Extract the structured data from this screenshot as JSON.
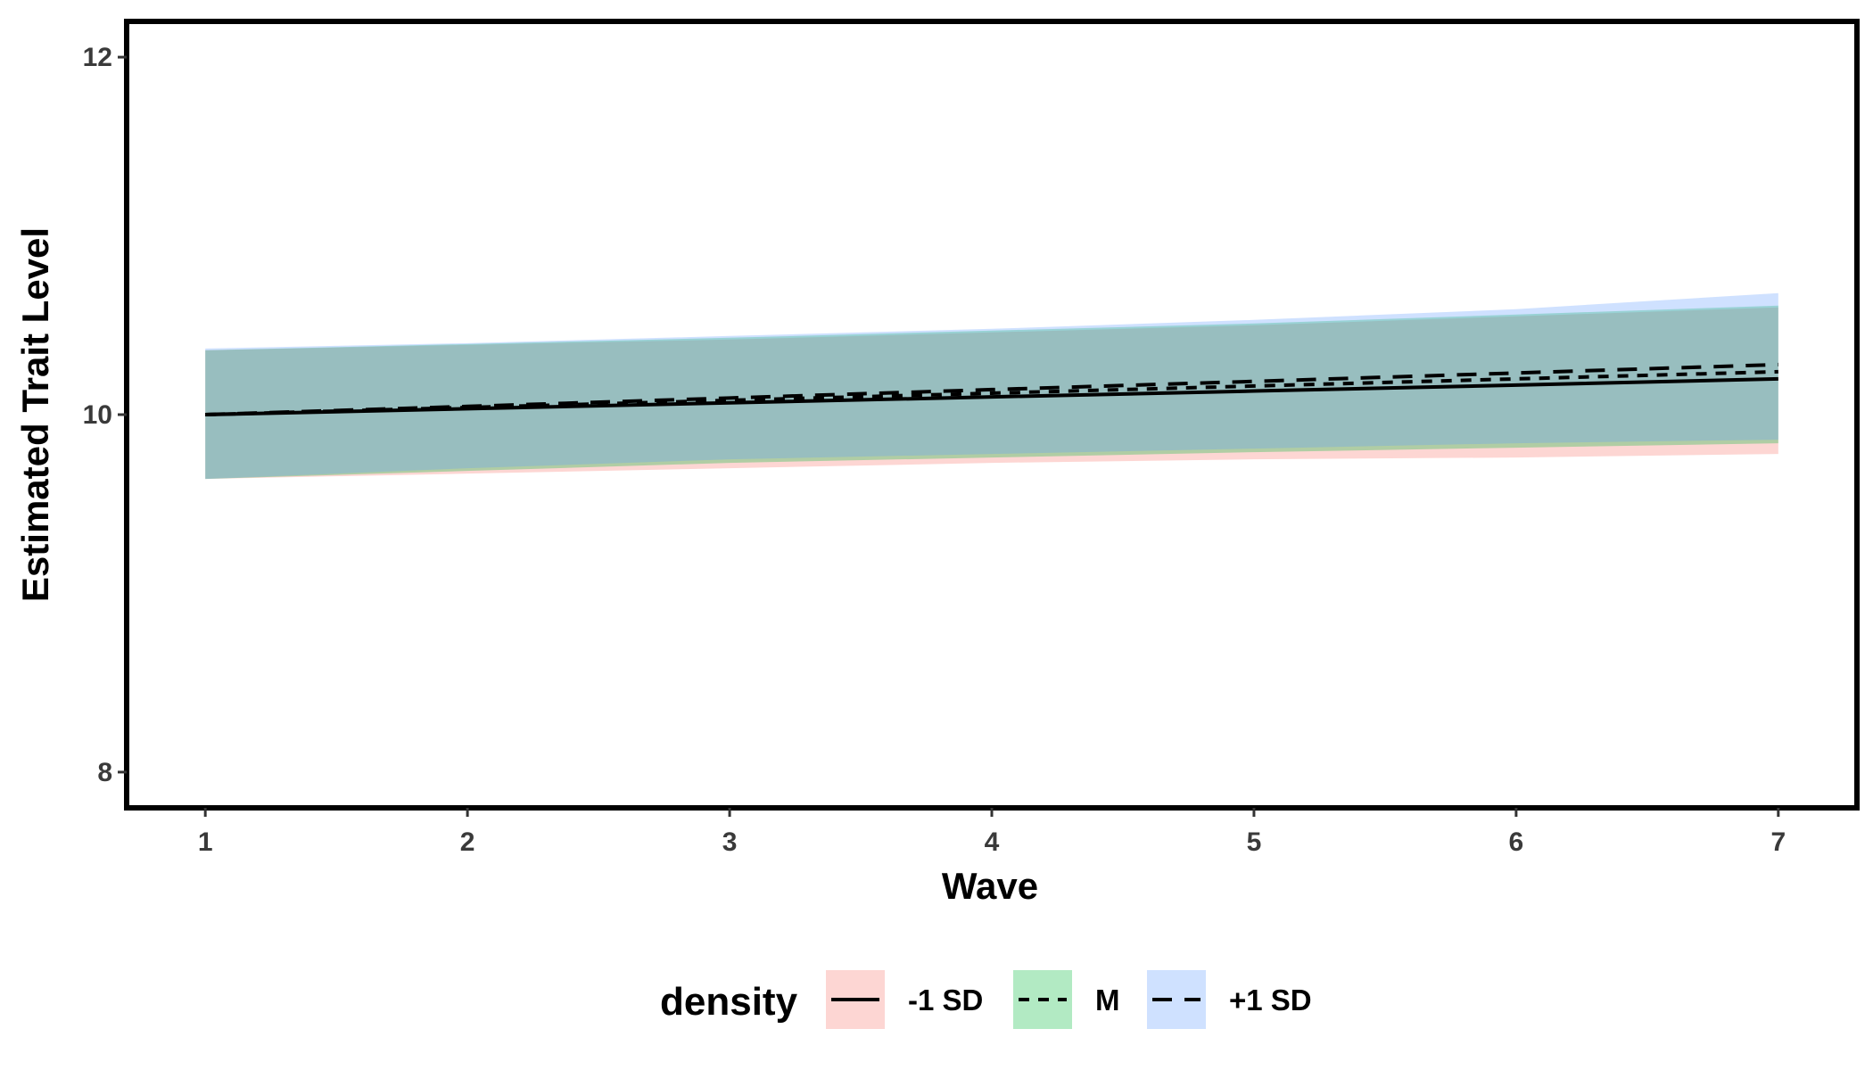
{
  "chart_data": {
    "type": "line",
    "title": "",
    "xlabel": "Wave",
    "ylabel": "Estimated Trait Level",
    "x": [
      1,
      2,
      3,
      4,
      5,
      6,
      7
    ],
    "xticks": [
      1,
      2,
      3,
      4,
      5,
      6,
      7
    ],
    "yticks": [
      8,
      10,
      12
    ],
    "xlim": [
      0.7,
      7.3
    ],
    "ylim": [
      7.8,
      12.2
    ],
    "grid": false,
    "legend": {
      "title": "density",
      "position": "bottom",
      "entries": [
        "-1 SD",
        "M",
        "+1 SD"
      ]
    },
    "series": [
      {
        "name": "-1 SD",
        "linestyle": "solid",
        "fill_color": "#f8766d",
        "y": [
          10.0,
          10.033,
          10.066,
          10.099,
          10.132,
          10.165,
          10.2
        ],
        "lower": [
          9.64,
          9.67,
          9.7,
          9.73,
          9.75,
          9.76,
          9.78
        ],
        "upper": [
          10.36,
          10.39,
          10.42,
          10.46,
          10.5,
          10.55,
          10.6
        ]
      },
      {
        "name": "M",
        "linestyle": "dotted",
        "fill_color": "#00ba38",
        "y": [
          10.0,
          10.04,
          10.08,
          10.12,
          10.16,
          10.2,
          10.24
        ],
        "lower": [
          9.64,
          9.685,
          9.73,
          9.76,
          9.79,
          9.815,
          9.84
        ],
        "upper": [
          10.36,
          10.395,
          10.43,
          10.47,
          10.51,
          10.56,
          10.61
        ]
      },
      {
        "name": "+1 SD",
        "linestyle": "dashed",
        "fill_color": "#619cff",
        "y": [
          10.0,
          10.046,
          10.093,
          10.14,
          10.186,
          10.233,
          10.28
        ],
        "lower": [
          9.64,
          9.7,
          9.75,
          9.78,
          9.81,
          9.84,
          9.86
        ],
        "upper": [
          10.37,
          10.4,
          10.44,
          10.48,
          10.53,
          10.59,
          10.68
        ]
      }
    ]
  }
}
